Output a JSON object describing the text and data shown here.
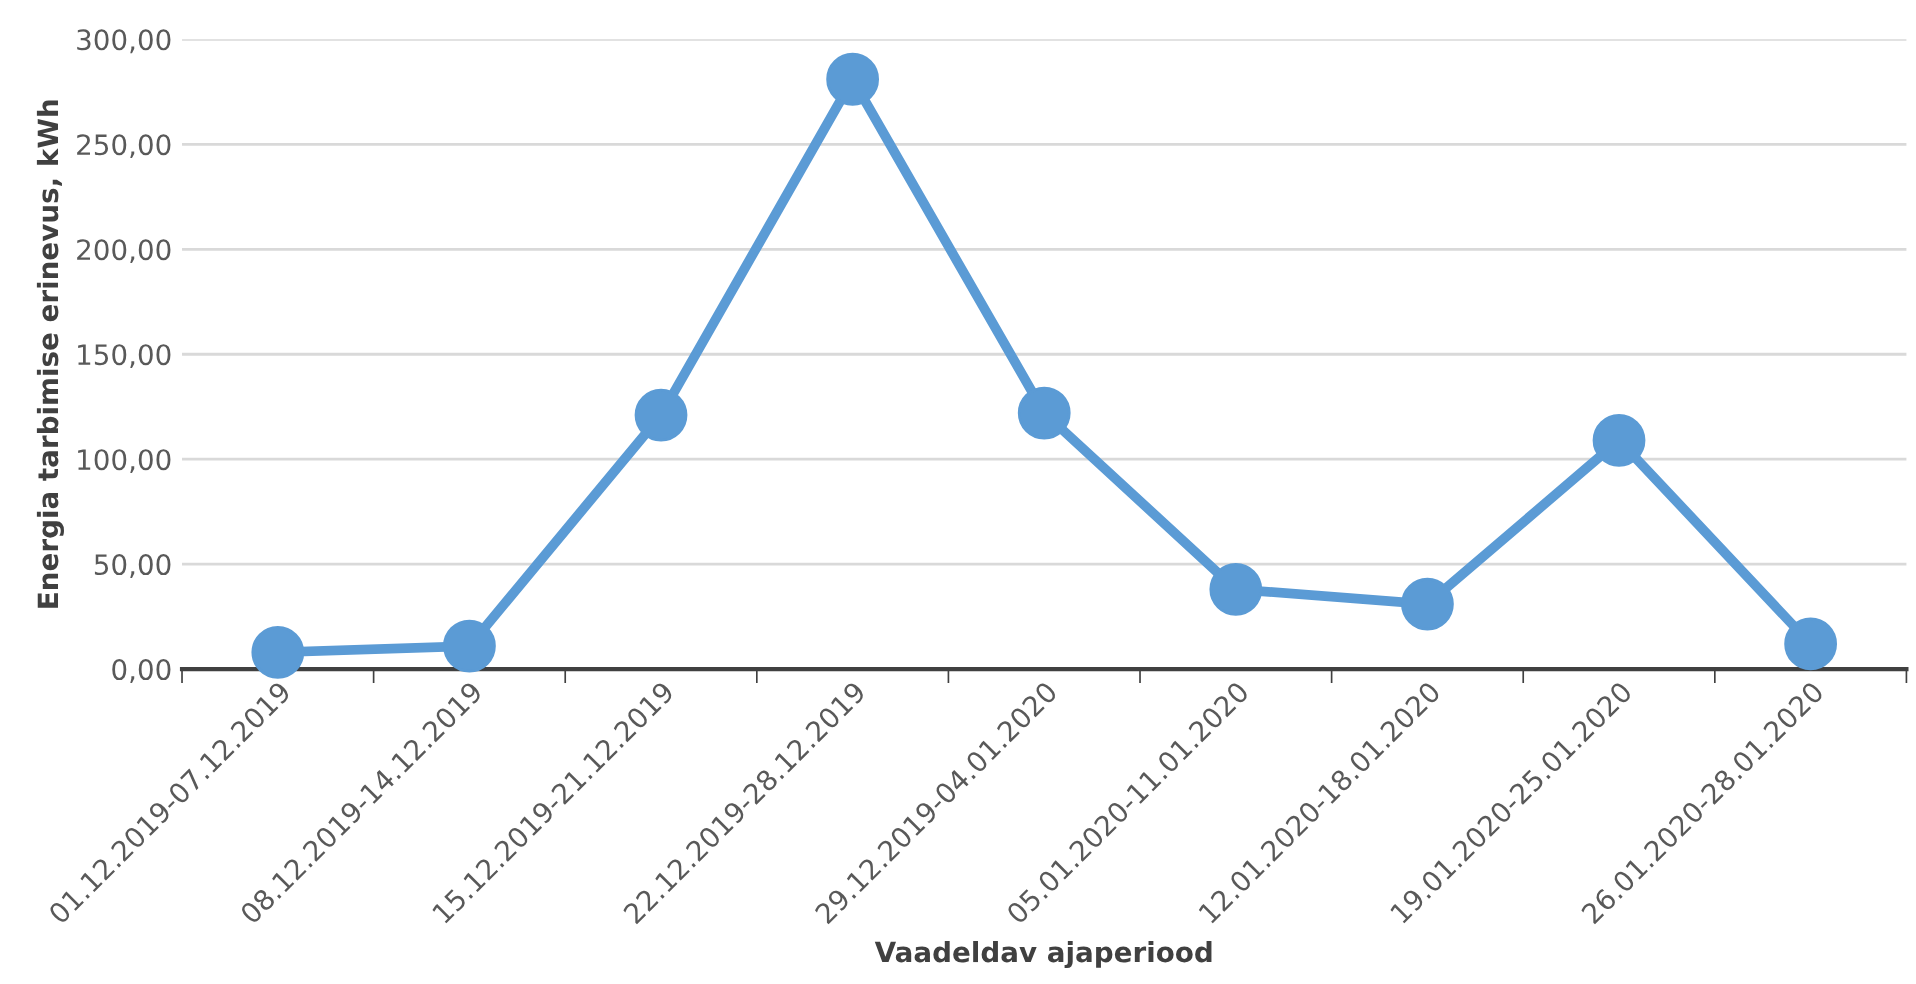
{
  "chart_data": {
    "type": "line",
    "xlabel": "Vaadeldav ajaperiood",
    "ylabel": "Energia tarbimise erinevus, kWh",
    "categories": [
      "01.12.2019-07.12.2019",
      "08.12.2019-14.12.2019",
      "15.12.2019-21.12.2019",
      "22.12.2019-28.12.2019",
      "29.12.2019-04.01.2020",
      "05.01.2020-11.01.2020",
      "12.01.2020-18.01.2020",
      "19.01.2020-25.01.2020",
      "26.01.2020-28.01.2020"
    ],
    "series": [
      {
        "color": "#5b9bd5",
        "values": [
          8,
          11,
          121,
          281,
          122,
          38,
          31,
          109,
          12
        ]
      }
    ],
    "ylim": [
      0,
      300
    ],
    "yticks": [
      {
        "value": 0,
        "label": "0,00"
      },
      {
        "value": 50,
        "label": "50,00"
      },
      {
        "value": 100,
        "label": "100,00"
      },
      {
        "value": 150,
        "label": "150,00"
      },
      {
        "value": 200,
        "label": "200,00"
      },
      {
        "value": 250,
        "label": "250,00"
      },
      {
        "value": 300,
        "label": "300,00"
      }
    ],
    "grid": "y",
    "marker": "circle",
    "line_style": "solid"
  }
}
